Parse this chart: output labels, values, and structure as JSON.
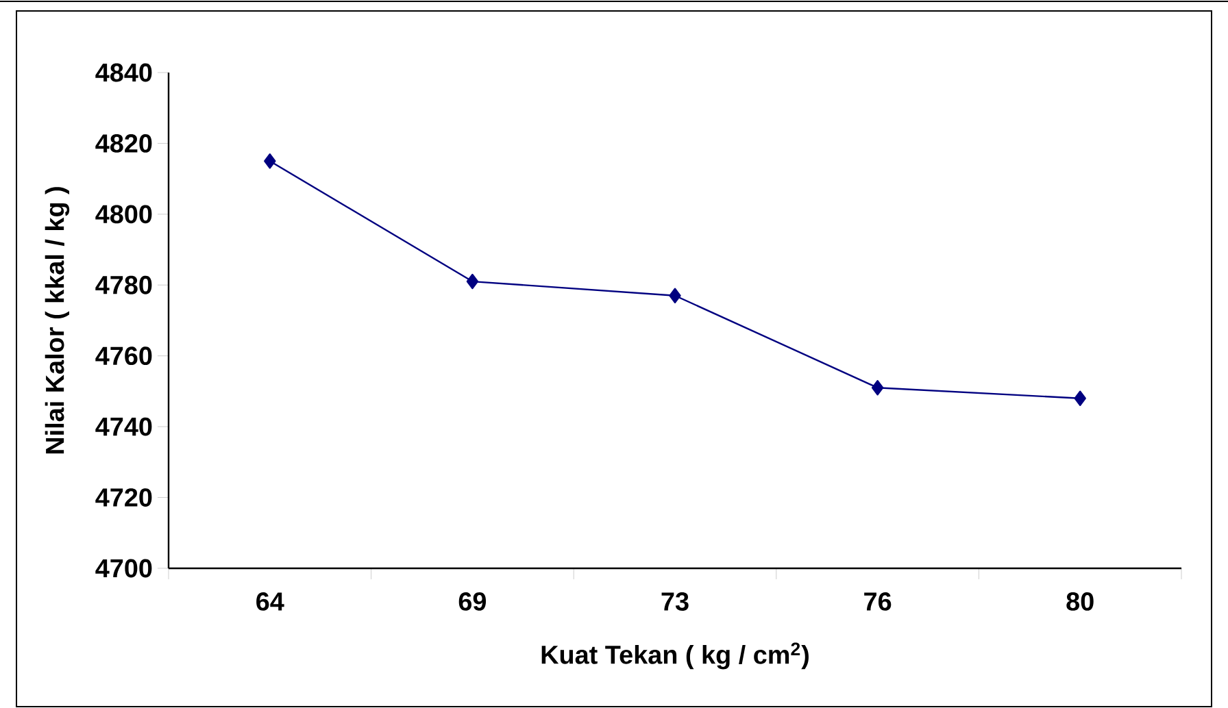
{
  "chart_data": {
    "type": "line",
    "xlabel": "Kuat  Tekan  ( kg / cm$^{2}$)",
    "ylabel": "Nilai  Kalor  ( kkal / kg )",
    "categories": [
      "64",
      "69",
      "73",
      "76",
      "80"
    ],
    "series": [
      {
        "color": "#000080",
        "values": [
          4815,
          4781,
          4777,
          4751,
          4748
        ]
      }
    ],
    "ylim": [
      4700,
      4840
    ],
    "yticks": [
      4700,
      4720,
      4740,
      4760,
      4780,
      4800,
      4820,
      4840
    ],
    "marker": "diamond",
    "line_style": "solid"
  }
}
